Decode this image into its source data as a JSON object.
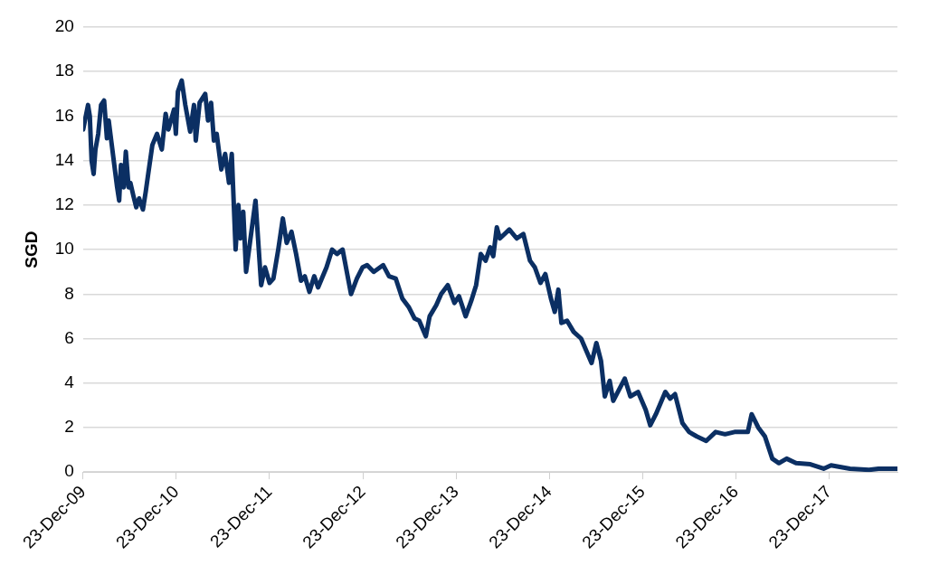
{
  "chart_data": {
    "type": "line",
    "ylabel": "SGD",
    "ylim": [
      0,
      20
    ],
    "yticks": [
      0,
      2,
      4,
      6,
      8,
      10,
      12,
      14,
      16,
      18,
      20
    ],
    "xlim": [
      "2009-12-23",
      "2018-09-16"
    ],
    "xticks": [
      {
        "value": "2009-12-23",
        "label": "23-Dec-09"
      },
      {
        "value": "2010-12-23",
        "label": "23-Dec-10"
      },
      {
        "value": "2011-12-23",
        "label": "23-Dec-11"
      },
      {
        "value": "2012-12-23",
        "label": "23-Dec-12"
      },
      {
        "value": "2013-12-23",
        "label": "23-Dec-13"
      },
      {
        "value": "2014-12-23",
        "label": "23-Dec-14"
      },
      {
        "value": "2015-12-23",
        "label": "23-Dec-15"
      },
      {
        "value": "2016-12-23",
        "label": "23-Dec-16"
      },
      {
        "value": "2017-12-23",
        "label": "23-Dec-17"
      }
    ],
    "grid": "y",
    "marker": "none",
    "line_style": "solid",
    "x": [
      "2009-12-23",
      "2009-12-30",
      "2010-01-11",
      "2010-01-18",
      "2010-01-25",
      "2010-02-02",
      "2010-02-09",
      "2010-02-20",
      "2010-03-03",
      "2010-03-15",
      "2010-03-26",
      "2010-04-02",
      "2010-04-13",
      "2010-04-24",
      "2010-05-05",
      "2010-05-13",
      "2010-05-20",
      "2010-05-31",
      "2010-06-08",
      "2010-06-19",
      "2010-06-26",
      "2010-07-08",
      "2010-07-19",
      "2010-07-30",
      "2010-08-14",
      "2010-08-25",
      "2010-09-05",
      "2010-09-20",
      "2010-10-08",
      "2010-10-27",
      "2010-11-11",
      "2010-11-22",
      "2010-12-14",
      "2010-12-21",
      "2010-12-29",
      "2011-01-13",
      "2011-01-27",
      "2011-02-15",
      "2011-03-02",
      "2011-03-09",
      "2011-03-24",
      "2011-04-15",
      "2011-04-26",
      "2011-05-08",
      "2011-05-19",
      "2011-05-30",
      "2011-06-17",
      "2011-07-02",
      "2011-07-17",
      "2011-07-28",
      "2011-08-12",
      "2011-08-23",
      "2011-08-31",
      "2011-09-11",
      "2011-09-22",
      "2011-10-29",
      "2011-11-20",
      "2011-12-05",
      "2011-12-23",
      "2012-01-07",
      "2012-01-26",
      "2012-02-13",
      "2012-02-28",
      "2012-03-18",
      "2012-04-05",
      "2012-04-24",
      "2012-05-09",
      "2012-05-27",
      "2012-06-15",
      "2012-06-30",
      "2012-08-02",
      "2012-08-24",
      "2012-09-12",
      "2012-10-04",
      "2012-11-06",
      "2012-11-29",
      "2012-12-21",
      "2013-01-08",
      "2013-02-03",
      "2013-03-12",
      "2013-04-04",
      "2013-04-30",
      "2013-05-26",
      "2013-06-21",
      "2013-07-13",
      "2013-07-31",
      "2013-08-26",
      "2013-09-10",
      "2013-10-06",
      "2013-10-25",
      "2013-11-20",
      "2013-12-16",
      "2014-01-03",
      "2014-01-29",
      "2014-02-20",
      "2014-03-11",
      "2014-03-29",
      "2014-04-17",
      "2014-05-05",
      "2014-05-17",
      "2014-05-31",
      "2014-06-12",
      "2014-07-19",
      "2014-08-17",
      "2014-09-12",
      "2014-10-08",
      "2014-10-27",
      "2014-11-18",
      "2014-12-07",
      "2014-12-29",
      "2015-01-13",
      "2015-01-27",
      "2015-02-08",
      "2015-03-02",
      "2015-03-28",
      "2015-04-26",
      "2015-06-06",
      "2015-06-25",
      "2015-07-13",
      "2015-07-28",
      "2015-08-16",
      "2015-08-30",
      "2015-10-14",
      "2015-11-05",
      "2015-12-05",
      "2016-01-04",
      "2016-01-22",
      "2016-02-13",
      "2016-03-21",
      "2016-04-09",
      "2016-04-28",
      "2016-05-27",
      "2016-06-22",
      "2016-07-22",
      "2016-08-28",
      "2016-10-04",
      "2016-11-10",
      "2016-12-17",
      "2017-02-07",
      "2017-02-22",
      "2017-03-20",
      "2017-04-15",
      "2017-05-14",
      "2017-06-09",
      "2017-07-09",
      "2017-08-15",
      "2017-10-10",
      "2017-12-01",
      "2017-12-30",
      "2018-03-14",
      "2018-05-28",
      "2018-07-04",
      "2018-09-16"
    ],
    "series": [
      {
        "color": "#0b2f63",
        "values": [
          15.4,
          15.8,
          16.5,
          16.0,
          14.0,
          13.4,
          14.5,
          15.2,
          16.5,
          16.7,
          15.0,
          15.8,
          14.8,
          13.8,
          12.8,
          12.2,
          13.8,
          12.8,
          14.4,
          12.8,
          13.0,
          12.4,
          11.9,
          12.3,
          11.8,
          12.6,
          13.5,
          14.7,
          15.2,
          14.5,
          16.1,
          15.4,
          16.3,
          15.2,
          17.1,
          17.6,
          16.5,
          15.3,
          16.5,
          14.9,
          16.6,
          17.0,
          15.8,
          16.6,
          14.9,
          15.2,
          13.6,
          14.3,
          13.0,
          14.3,
          10.0,
          12.0,
          10.5,
          11.7,
          9.0,
          12.2,
          8.4,
          9.2,
          8.5,
          8.7,
          10.0,
          11.4,
          10.3,
          10.8,
          9.8,
          8.6,
          8.8,
          8.1,
          8.8,
          8.3,
          9.2,
          10.0,
          9.8,
          10.0,
          8.0,
          8.7,
          9.2,
          9.3,
          9.0,
          9.3,
          8.8,
          8.7,
          7.8,
          7.4,
          6.9,
          6.8,
          6.1,
          7.0,
          7.5,
          8.0,
          8.4,
          7.6,
          7.9,
          7.0,
          7.7,
          8.4,
          9.8,
          9.5,
          10.1,
          9.7,
          11.0,
          10.5,
          10.9,
          10.5,
          10.7,
          9.5,
          9.2,
          8.5,
          8.9,
          7.8,
          7.2,
          8.2,
          6.7,
          6.8,
          6.3,
          6.0,
          4.9,
          5.8,
          5.0,
          3.4,
          4.1,
          3.2,
          4.2,
          3.4,
          3.6,
          2.8,
          2.1,
          2.6,
          3.6,
          3.3,
          3.5,
          2.2,
          1.8,
          1.6,
          1.4,
          1.8,
          1.7,
          1.8,
          1.8,
          2.6,
          2.0,
          1.6,
          0.6,
          0.4,
          0.6,
          0.4,
          0.35,
          0.15,
          0.3,
          0.15,
          0.1,
          0.15,
          0.15
        ]
      }
    ]
  }
}
